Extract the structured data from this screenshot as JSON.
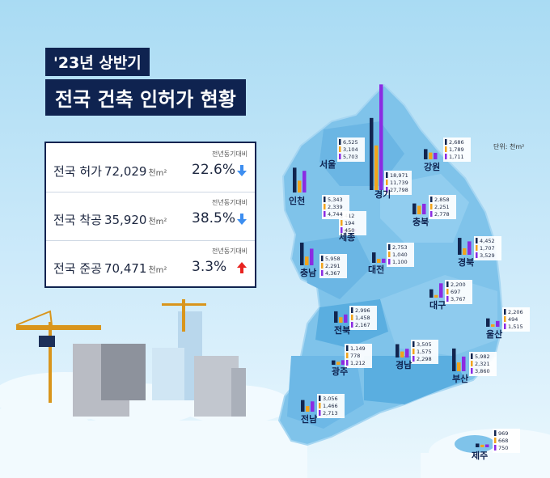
{
  "title_line1": "'23년 상반기",
  "title_line2": "전국 건축 인허가 현황",
  "unit_label": "단위: 천m²",
  "summary": [
    {
      "label": "전국 허가",
      "value": "72,029",
      "unit": "천m²",
      "caption": "전년동기대비",
      "pct": "22.6%",
      "direction": "down"
    },
    {
      "label": "전국 착공",
      "value": "35,920",
      "unit": "천m²",
      "caption": "전년동기대비",
      "pct": "38.5%",
      "direction": "down"
    },
    {
      "label": "전국 준공",
      "value": "70,471",
      "unit": "천m²",
      "caption": "전년동기대비",
      "pct": "3.3%",
      "direction": "up"
    }
  ],
  "colors": {
    "허가": "#11254f",
    "착공": "#f2a41c",
    "준공": "#8b2be2",
    "down": "#3d8ef0",
    "up": "#e8231f",
    "navy": "#0f2350"
  },
  "chart_data": {
    "type": "bar",
    "series": [
      {
        "name": "허가"
      },
      {
        "name": "착공"
      },
      {
        "name": "준공"
      }
    ],
    "regions": [
      {
        "name": "서울",
        "values": [
          6525,
          3104,
          5703
        ],
        "labels": [
          "6,525",
          "3,104",
          "5,703"
        ]
      },
      {
        "name": "인천",
        "values": [
          5343,
          2339,
          4744
        ],
        "labels": [
          "5,343",
          "2,339",
          "4,744"
        ]
      },
      {
        "name": "경기",
        "values": [
          18971,
          11739,
          27798
        ],
        "labels": [
          "18,971",
          "11,739",
          "27,798"
        ]
      },
      {
        "name": "강원",
        "values": [
          2686,
          1789,
          1711
        ],
        "labels": [
          "2,686",
          "1,789",
          "1,711"
        ]
      },
      {
        "name": "세종",
        "values": [
          412,
          194,
          450
        ],
        "labels": [
          "412",
          "194",
          "450"
        ]
      },
      {
        "name": "충북",
        "values": [
          2858,
          2251,
          2778
        ],
        "labels": [
          "2,858",
          "2,251",
          "2,778"
        ]
      },
      {
        "name": "경북",
        "values": [
          4452,
          1707,
          3529
        ],
        "labels": [
          "4,452",
          "1,707",
          "3,529"
        ]
      },
      {
        "name": "충남",
        "values": [
          5958,
          2291,
          4367
        ],
        "labels": [
          "5,958",
          "2,291",
          "4,367"
        ]
      },
      {
        "name": "대전",
        "values": [
          2753,
          1040,
          1100
        ],
        "labels": [
          "2,753",
          "1,040",
          "1,100"
        ]
      },
      {
        "name": "대구",
        "values": [
          2200,
          697,
          3767
        ],
        "labels": [
          "2,200",
          "697",
          "3,767"
        ]
      },
      {
        "name": "전북",
        "values": [
          2996,
          1458,
          2167
        ],
        "labels": [
          "2,996",
          "1,458",
          "2,167"
        ]
      },
      {
        "name": "울산",
        "values": [
          2206,
          494,
          1515
        ],
        "labels": [
          "2,206",
          "494",
          "1,515"
        ]
      },
      {
        "name": "광주",
        "values": [
          1149,
          778,
          1212
        ],
        "labels": [
          "1,149",
          "778",
          "1,212"
        ]
      },
      {
        "name": "경남",
        "values": [
          3505,
          1575,
          2298
        ],
        "labels": [
          "3,505",
          "1,575",
          "2,298"
        ]
      },
      {
        "name": "부산",
        "values": [
          5982,
          2321,
          3860
        ],
        "labels": [
          "5,982",
          "2,321",
          "3,860"
        ]
      },
      {
        "name": "전남",
        "values": [
          3056,
          1466,
          2713
        ],
        "labels": [
          "3,056",
          "1,466",
          "2,713"
        ]
      },
      {
        "name": "제주",
        "values": [
          969,
          668,
          750
        ],
        "labels": [
          "969",
          "668",
          "750"
        ]
      }
    ]
  }
}
